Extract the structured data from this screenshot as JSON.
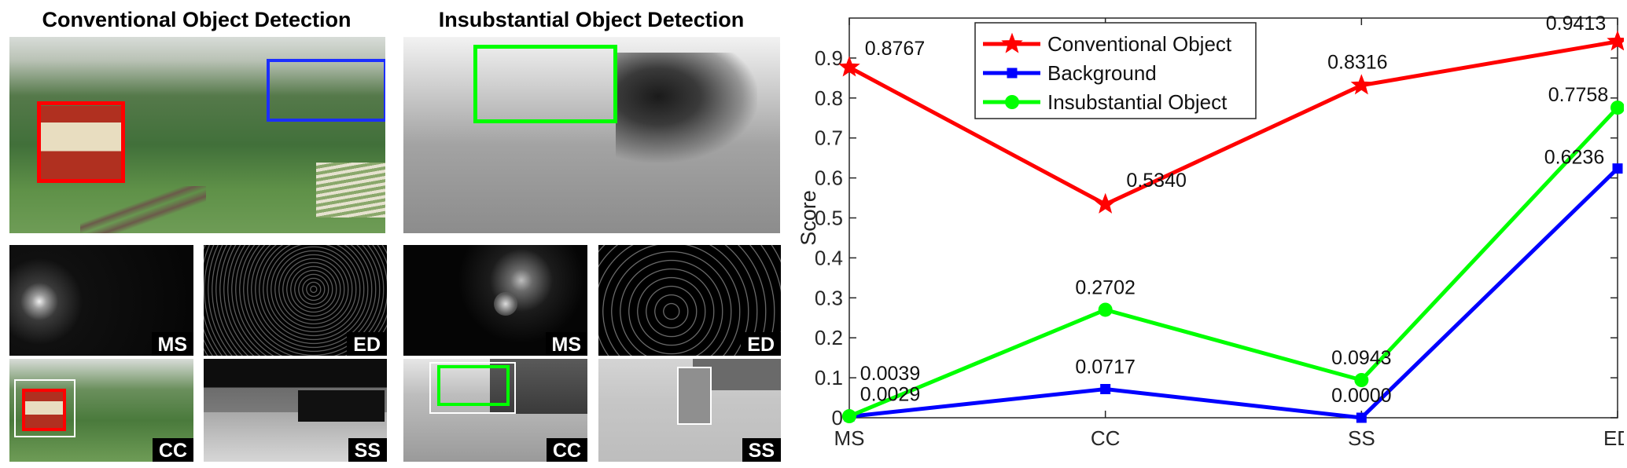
{
  "panels": {
    "conventional_title": "Conventional Object Detection",
    "insubstantial_title": "Insubstantial Object Detection",
    "tags": {
      "ms": "MS",
      "ed": "ED",
      "cc": "CC",
      "ss": "SS"
    }
  },
  "colors": {
    "conventional": "#ff0000",
    "background": "#0000ff",
    "insubstantial": "#00ff00"
  },
  "chart_data": {
    "type": "line",
    "categories": [
      "MS",
      "CC",
      "SS",
      "ED"
    ],
    "ylabel": "Score",
    "xlabel": "",
    "ylim": [
      0,
      1
    ],
    "yticks": [
      "0",
      "0.1",
      "0.2",
      "0.3",
      "0.4",
      "0.5",
      "0.6",
      "0.7",
      "0.8",
      "0.9"
    ],
    "legend_position": "top-left",
    "series": [
      {
        "name": "Conventional Object",
        "color": "#ff0000",
        "marker": "star",
        "values": [
          0.8767,
          0.534,
          0.8316,
          0.9413
        ],
        "labels": [
          "0.8767",
          "0.5340",
          "0.8316",
          "0.9413"
        ]
      },
      {
        "name": "Background",
        "color": "#0000ff",
        "marker": "square",
        "values": [
          0.0029,
          0.0717,
          0.0,
          0.6236
        ],
        "labels": [
          "0.0029",
          "0.0717",
          "0.0000",
          "0.6236"
        ]
      },
      {
        "name": "Insubstantial Object",
        "color": "#00ff00",
        "marker": "circle",
        "values": [
          0.0039,
          0.2702,
          0.0943,
          0.7758
        ],
        "labels": [
          "0.0039",
          "0.2702",
          "0.0943",
          "0.7758"
        ]
      }
    ]
  }
}
